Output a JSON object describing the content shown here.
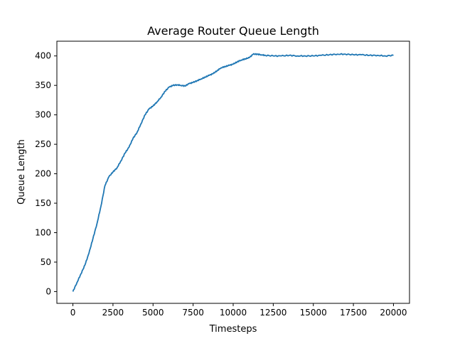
{
  "chart_data": {
    "type": "line",
    "title": "Average Router Queue Length",
    "xlabel": "Timesteps",
    "ylabel": "Queue Length",
    "xlim": [
      -1000,
      21000
    ],
    "ylim": [
      -20,
      425
    ],
    "xticks": [
      0,
      2500,
      5000,
      7500,
      10000,
      12500,
      15000,
      17500,
      20000
    ],
    "yticks": [
      0,
      50,
      100,
      150,
      200,
      250,
      300,
      350,
      400
    ],
    "grid": false,
    "legend": "none",
    "series": [
      {
        "color": "#1f77b4",
        "points": [
          [
            0,
            0
          ],
          [
            250,
            15
          ],
          [
            500,
            30
          ],
          [
            750,
            45
          ],
          [
            1000,
            65
          ],
          [
            1250,
            90
          ],
          [
            1500,
            115
          ],
          [
            1750,
            145
          ],
          [
            2000,
            180
          ],
          [
            2250,
            195
          ],
          [
            2500,
            203
          ],
          [
            2750,
            210
          ],
          [
            3000,
            222
          ],
          [
            3250,
            235
          ],
          [
            3500,
            245
          ],
          [
            3750,
            260
          ],
          [
            4000,
            270
          ],
          [
            4250,
            285
          ],
          [
            4500,
            300
          ],
          [
            4750,
            310
          ],
          [
            5000,
            315
          ],
          [
            5250,
            322
          ],
          [
            5500,
            330
          ],
          [
            5750,
            340
          ],
          [
            6000,
            347
          ],
          [
            6250,
            350
          ],
          [
            6500,
            351
          ],
          [
            6750,
            350
          ],
          [
            7000,
            349
          ],
          [
            7250,
            353
          ],
          [
            7500,
            355
          ],
          [
            7750,
            358
          ],
          [
            8000,
            361
          ],
          [
            8250,
            364
          ],
          [
            8500,
            367
          ],
          [
            8750,
            370
          ],
          [
            9000,
            375
          ],
          [
            9250,
            380
          ],
          [
            9500,
            382
          ],
          [
            9750,
            384
          ],
          [
            10000,
            386
          ],
          [
            10250,
            390
          ],
          [
            10500,
            393
          ],
          [
            10750,
            395
          ],
          [
            11000,
            397
          ],
          [
            11250,
            403
          ],
          [
            11500,
            403
          ],
          [
            11750,
            402
          ],
          [
            12000,
            401
          ],
          [
            12500,
            400
          ],
          [
            13000,
            400
          ],
          [
            13500,
            401
          ],
          [
            14000,
            400
          ],
          [
            14500,
            400
          ],
          [
            15000,
            400
          ],
          [
            15500,
            401
          ],
          [
            16000,
            402
          ],
          [
            16500,
            403
          ],
          [
            17000,
            403
          ],
          [
            17500,
            402
          ],
          [
            18000,
            402
          ],
          [
            18500,
            401
          ],
          [
            19000,
            401
          ],
          [
            19500,
            400
          ],
          [
            20000,
            401
          ]
        ]
      }
    ]
  }
}
